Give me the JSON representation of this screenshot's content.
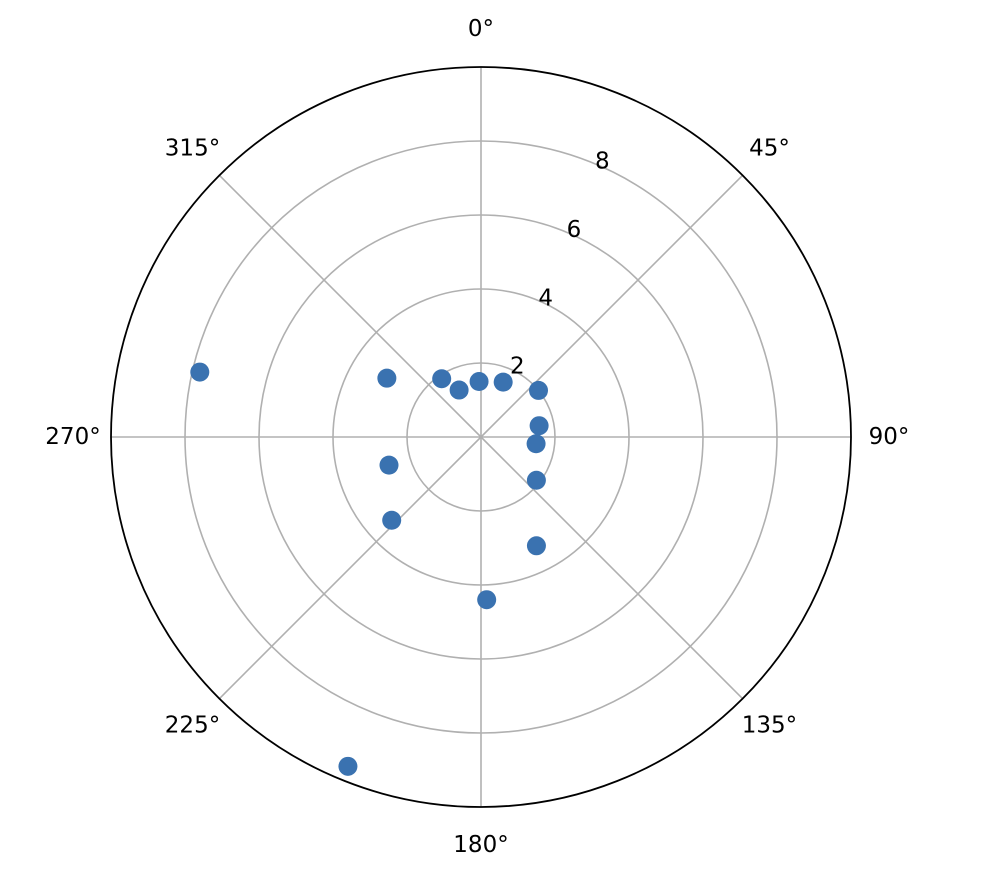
{
  "chart_data": {
    "type": "scatter",
    "projection": "polar",
    "title": "",
    "theta_direction": "clockwise",
    "theta_zero_location": "top",
    "theta_tick_labels": [
      "0°",
      "45°",
      "90°",
      "135°",
      "180°",
      "225°",
      "270°",
      "315°"
    ],
    "theta_ticks_deg": [
      0,
      45,
      90,
      135,
      180,
      225,
      270,
      315
    ],
    "r_tick_labels": [
      "2",
      "4",
      "6",
      "8"
    ],
    "r_ticks": [
      2,
      4,
      6,
      8
    ],
    "rlim": [
      0,
      10
    ],
    "grid": true,
    "marker_color": "#3a72b0",
    "points": [
      {
        "theta_deg": 358.0,
        "r": 1.5
      },
      {
        "theta_deg": 335.0,
        "r": 1.4
      },
      {
        "theta_deg": 326.0,
        "r": 1.9
      },
      {
        "theta_deg": 22.0,
        "r": 1.6
      },
      {
        "theta_deg": 51.0,
        "r": 2.0
      },
      {
        "theta_deg": 79.0,
        "r": 1.6
      },
      {
        "theta_deg": 97.0,
        "r": 1.5
      },
      {
        "theta_deg": 128.0,
        "r": 1.9
      },
      {
        "theta_deg": 153.0,
        "r": 3.3
      },
      {
        "theta_deg": 178.0,
        "r": 4.4
      },
      {
        "theta_deg": 227.0,
        "r": 3.3
      },
      {
        "theta_deg": 253.0,
        "r": 2.6
      },
      {
        "theta_deg": 302.0,
        "r": 3.0
      },
      {
        "theta_deg": 283.0,
        "r": 7.8
      },
      {
        "theta_deg": 202.0,
        "r": 9.6
      }
    ]
  }
}
